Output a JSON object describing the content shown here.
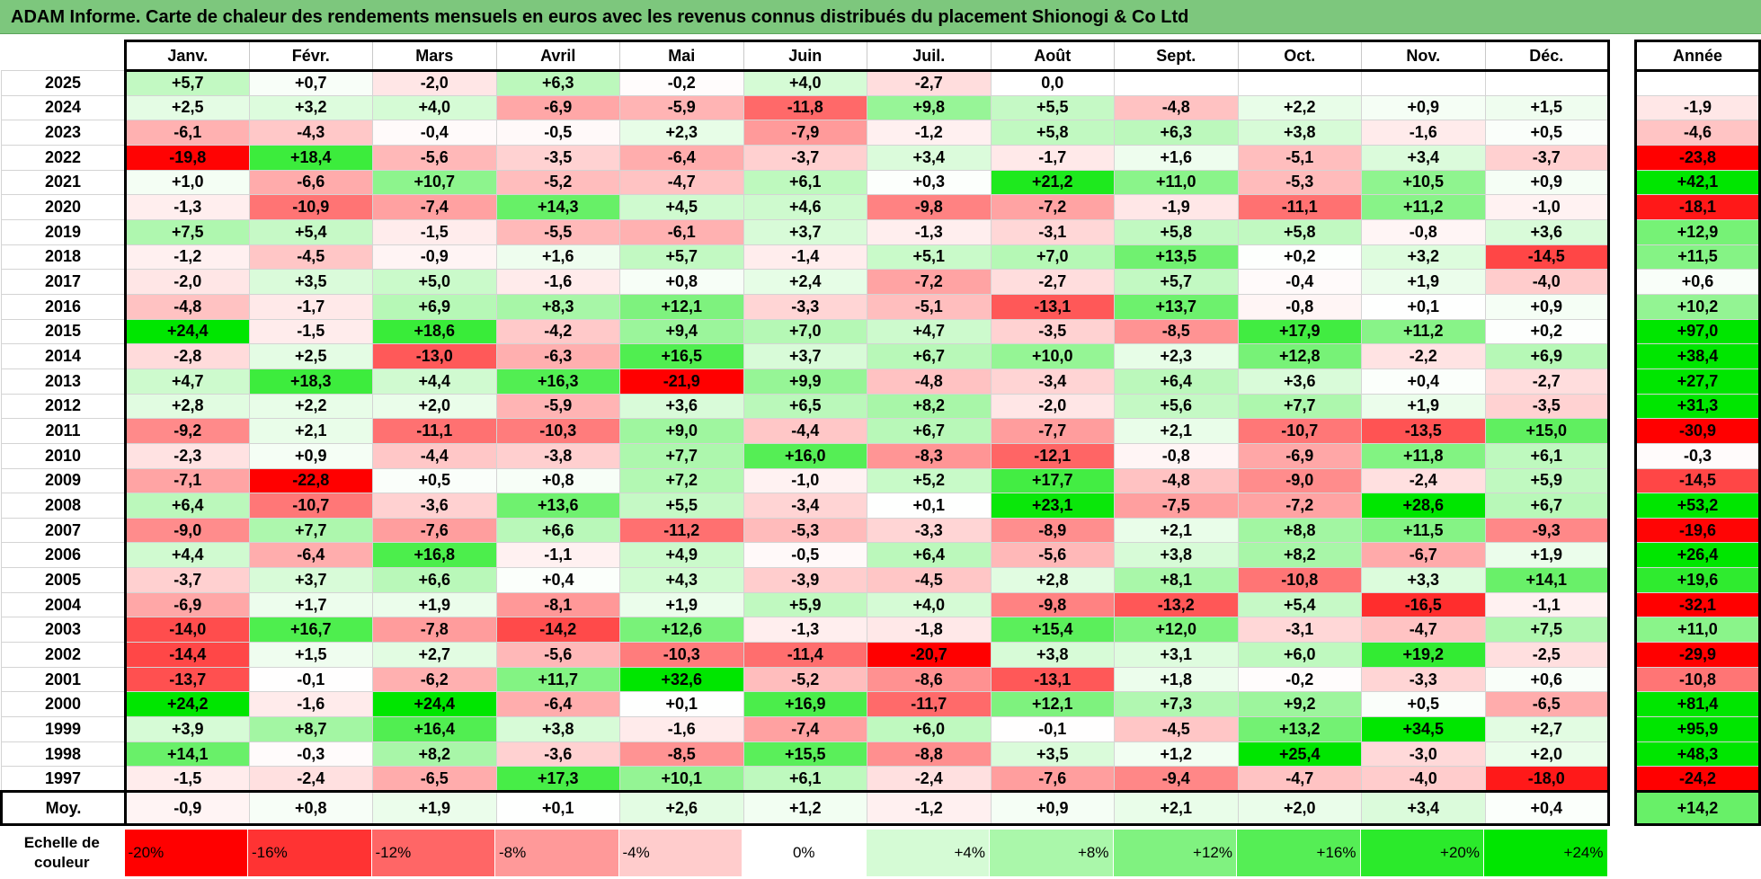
{
  "title": "ADAM Informe. Carte de chaleur des rendements mensuels en euros avec les revenus connus distribués du placement Shionogi & Co Ltd",
  "chart_data": {
    "type": "heatmap",
    "title": "ADAM Informe. Carte de chaleur des rendements mensuels en euros avec les revenus connus distribués du placement Shionogi & Co Ltd",
    "months": [
      "Janv.",
      "Févr.",
      "Mars",
      "Avril",
      "Mai",
      "Juin",
      "Juil.",
      "Août",
      "Sept.",
      "Oct.",
      "Nov.",
      "Déc."
    ],
    "year_header": "Année",
    "rows": [
      {
        "year": "2025",
        "values": [
          "+5,7",
          "+0,7",
          "-2,0",
          "+6,3",
          "-0,2",
          "+4,0",
          "-2,7",
          "0,0",
          "",
          "",
          "",
          ""
        ],
        "annual": ""
      },
      {
        "year": "2024",
        "values": [
          "+2,5",
          "+3,2",
          "+4,0",
          "-6,9",
          "-5,9",
          "-11,8",
          "+9,8",
          "+5,5",
          "-4,8",
          "+2,2",
          "+0,9",
          "+1,5"
        ],
        "annual": "-1,9"
      },
      {
        "year": "2023",
        "values": [
          "-6,1",
          "-4,3",
          "-0,4",
          "-0,5",
          "+2,3",
          "-7,9",
          "-1,2",
          "+5,8",
          "+6,3",
          "+3,8",
          "-1,6",
          "+0,5"
        ],
        "annual": "-4,6"
      },
      {
        "year": "2022",
        "values": [
          "-19,8",
          "+18,4",
          "-5,6",
          "-3,5",
          "-6,4",
          "-3,7",
          "+3,4",
          "-1,7",
          "+1,6",
          "-5,1",
          "+3,4",
          "-3,7"
        ],
        "annual": "-23,8"
      },
      {
        "year": "2021",
        "values": [
          "+1,0",
          "-6,6",
          "+10,7",
          "-5,2",
          "-4,7",
          "+6,1",
          "+0,3",
          "+21,2",
          "+11,0",
          "-5,3",
          "+10,5",
          "+0,9"
        ],
        "annual": "+42,1"
      },
      {
        "year": "2020",
        "values": [
          "-1,3",
          "-10,9",
          "-7,4",
          "+14,3",
          "+4,5",
          "+4,6",
          "-9,8",
          "-7,2",
          "-1,9",
          "-11,1",
          "+11,2",
          "-1,0"
        ],
        "annual": "-18,1"
      },
      {
        "year": "2019",
        "values": [
          "+7,5",
          "+5,4",
          "-1,5",
          "-5,5",
          "-6,1",
          "+3,7",
          "-1,3",
          "-3,1",
          "+5,8",
          "+5,8",
          "-0,8",
          "+3,6"
        ],
        "annual": "+12,9"
      },
      {
        "year": "2018",
        "values": [
          "-1,2",
          "-4,5",
          "-0,9",
          "+1,6",
          "+5,7",
          "-1,4",
          "+5,1",
          "+7,0",
          "+13,5",
          "+0,2",
          "+3,2",
          "-14,5"
        ],
        "annual": "+11,5"
      },
      {
        "year": "2017",
        "values": [
          "-2,0",
          "+3,5",
          "+5,0",
          "-1,6",
          "+0,8",
          "+2,4",
          "-7,2",
          "-2,7",
          "+5,7",
          "-0,4",
          "+1,9",
          "-4,0"
        ],
        "annual": "+0,6"
      },
      {
        "year": "2016",
        "values": [
          "-4,8",
          "-1,7",
          "+6,9",
          "+8,3",
          "+12,1",
          "-3,3",
          "-5,1",
          "-13,1",
          "+13,7",
          "-0,8",
          "+0,1",
          "+0,9"
        ],
        "annual": "+10,2"
      },
      {
        "year": "2015",
        "values": [
          "+24,4",
          "-1,5",
          "+18,6",
          "-4,2",
          "+9,4",
          "+7,0",
          "+4,7",
          "-3,5",
          "-8,5",
          "+17,9",
          "+11,2",
          "+0,2"
        ],
        "annual": "+97,0"
      },
      {
        "year": "2014",
        "values": [
          "-2,8",
          "+2,5",
          "-13,0",
          "-6,3",
          "+16,5",
          "+3,7",
          "+6,7",
          "+10,0",
          "+2,3",
          "+12,8",
          "-2,2",
          "+6,9"
        ],
        "annual": "+38,4"
      },
      {
        "year": "2013",
        "values": [
          "+4,7",
          "+18,3",
          "+4,4",
          "+16,3",
          "-21,9",
          "+9,9",
          "-4,8",
          "-3,4",
          "+6,4",
          "+3,6",
          "+0,4",
          "-2,7"
        ],
        "annual": "+27,7"
      },
      {
        "year": "2012",
        "values": [
          "+2,8",
          "+2,2",
          "+2,0",
          "-5,9",
          "+3,6",
          "+6,5",
          "+8,2",
          "-2,0",
          "+5,6",
          "+7,7",
          "+1,9",
          "-3,5"
        ],
        "annual": "+31,3"
      },
      {
        "year": "2011",
        "values": [
          "-9,2",
          "+2,1",
          "-11,1",
          "-10,3",
          "+9,0",
          "-4,4",
          "+6,7",
          "-7,7",
          "+2,1",
          "-10,7",
          "-13,5",
          "+15,0"
        ],
        "annual": "-30,9"
      },
      {
        "year": "2010",
        "values": [
          "-2,3",
          "+0,9",
          "-4,4",
          "-3,8",
          "+7,7",
          "+16,0",
          "-8,3",
          "-12,1",
          "-0,8",
          "-6,9",
          "+11,8",
          "+6,1"
        ],
        "annual": "-0,3"
      },
      {
        "year": "2009",
        "values": [
          "-7,1",
          "-22,8",
          "+0,5",
          "+0,8",
          "+7,2",
          "-1,0",
          "+5,2",
          "+17,7",
          "-4,8",
          "-9,0",
          "-2,4",
          "+5,9"
        ],
        "annual": "-14,5"
      },
      {
        "year": "2008",
        "values": [
          "+6,4",
          "-10,7",
          "-3,6",
          "+13,6",
          "+5,5",
          "-3,4",
          "+0,1",
          "+23,1",
          "-7,5",
          "-7,2",
          "+28,6",
          "+6,7"
        ],
        "annual": "+53,2"
      },
      {
        "year": "2007",
        "values": [
          "-9,0",
          "+7,7",
          "-7,6",
          "+6,6",
          "-11,2",
          "-5,3",
          "-3,3",
          "-8,9",
          "+2,1",
          "+8,8",
          "+11,5",
          "-9,3"
        ],
        "annual": "-19,6"
      },
      {
        "year": "2006",
        "values": [
          "+4,4",
          "-6,4",
          "+16,8",
          "-1,1",
          "+4,9",
          "-0,5",
          "+6,4",
          "-5,6",
          "+3,8",
          "+8,2",
          "-6,7",
          "+1,9"
        ],
        "annual": "+26,4"
      },
      {
        "year": "2005",
        "values": [
          "-3,7",
          "+3,7",
          "+6,6",
          "+0,4",
          "+4,3",
          "-3,9",
          "-4,5",
          "+2,8",
          "+8,1",
          "-10,8",
          "+3,3",
          "+14,1"
        ],
        "annual": "+19,6"
      },
      {
        "year": "2004",
        "values": [
          "-6,9",
          "+1,7",
          "+1,9",
          "-8,1",
          "+1,9",
          "+5,9",
          "+4,0",
          "-9,8",
          "-13,2",
          "+5,4",
          "-16,5",
          "-1,1"
        ],
        "annual": "-32,1"
      },
      {
        "year": "2003",
        "values": [
          "-14,0",
          "+16,7",
          "-7,8",
          "-14,2",
          "+12,6",
          "-1,3",
          "-1,8",
          "+15,4",
          "+12,0",
          "-3,1",
          "-4,7",
          "+7,5"
        ],
        "annual": "+11,0"
      },
      {
        "year": "2002",
        "values": [
          "-14,4",
          "+1,5",
          "+2,7",
          "-5,6",
          "-10,3",
          "-11,4",
          "-20,7",
          "+3,8",
          "+3,1",
          "+6,0",
          "+19,2",
          "-2,5"
        ],
        "annual": "-29,9"
      },
      {
        "year": "2001",
        "values": [
          "-13,7",
          "-0,1",
          "-6,2",
          "+11,7",
          "+32,6",
          "-5,2",
          "-8,6",
          "-13,1",
          "+1,8",
          "-0,2",
          "-3,3",
          "+0,6"
        ],
        "annual": "-10,8"
      },
      {
        "year": "2000",
        "values": [
          "+24,2",
          "-1,6",
          "+24,4",
          "-6,4",
          "+0,1",
          "+16,9",
          "-11,7",
          "+12,1",
          "+7,3",
          "+9,2",
          "+0,5",
          "-6,5"
        ],
        "annual": "+81,4"
      },
      {
        "year": "1999",
        "values": [
          "+3,9",
          "+8,7",
          "+16,4",
          "+3,8",
          "-1,6",
          "-7,4",
          "+6,0",
          "-0,1",
          "-4,5",
          "+13,2",
          "+34,5",
          "+2,7"
        ],
        "annual": "+95,9"
      },
      {
        "year": "1998",
        "values": [
          "+14,1",
          "-0,3",
          "+8,2",
          "-3,6",
          "-8,5",
          "+15,5",
          "-8,8",
          "+3,5",
          "+1,2",
          "+25,4",
          "-3,0",
          "+2,0"
        ],
        "annual": "+48,3"
      },
      {
        "year": "1997",
        "values": [
          "-1,5",
          "-2,4",
          "-6,5",
          "+17,3",
          "+10,1",
          "+6,1",
          "-2,4",
          "-7,6",
          "-9,4",
          "-4,7",
          "-4,0",
          "-18,0"
        ],
        "annual": "-24,2"
      }
    ],
    "average": {
      "label": "Moy.",
      "values": [
        "-0,9",
        "+0,8",
        "+1,9",
        "+0,1",
        "+2,6",
        "+1,2",
        "-1,2",
        "+0,9",
        "+2,1",
        "+2,0",
        "+3,4",
        "+0,4"
      ],
      "annual": "+14,2"
    },
    "scale": {
      "label": "Echelle de couleur",
      "steps": [
        {
          "label": "-20%",
          "value": -20,
          "color": "#ff0000"
        },
        {
          "label": "-16%",
          "value": -16,
          "color": "#ff3333"
        },
        {
          "label": "-12%",
          "value": -12,
          "color": "#ff6666"
        },
        {
          "label": "-8%",
          "value": -8,
          "color": "#ff9999"
        },
        {
          "label": "-4%",
          "value": -4,
          "color": "#ffcccc"
        },
        {
          "label": "0%",
          "value": 0,
          "color": "#ffffff"
        },
        {
          "label": "+4%",
          "value": 4,
          "color": "#d5fbd5"
        },
        {
          "label": "+8%",
          "value": 8,
          "color": "#aaf7aa"
        },
        {
          "label": "+12%",
          "value": 12,
          "color": "#80f280"
        },
        {
          "label": "+16%",
          "value": 16,
          "color": "#55ee55"
        },
        {
          "label": "+20%",
          "value": 20,
          "color": "#2bea2b"
        },
        {
          "label": "+24%",
          "value": 24,
          "color": "#00e600"
        }
      ]
    }
  }
}
